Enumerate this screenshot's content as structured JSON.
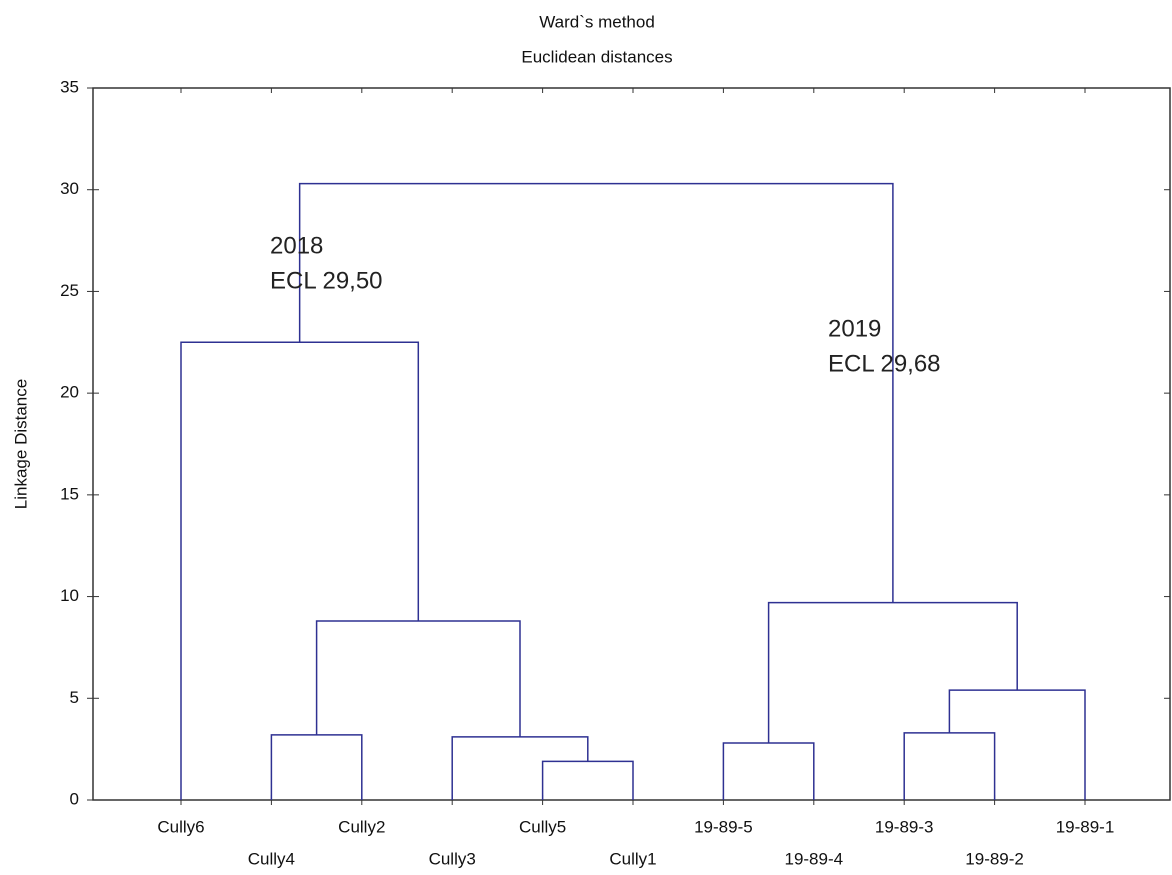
{
  "chart_data": {
    "type": "dendrogram",
    "title": "Ward`s method",
    "subtitle": "Euclidean distances",
    "y_label": "Linkage Distance",
    "ylim": [
      0,
      35
    ],
    "yticks": [
      0,
      5,
      10,
      15,
      20,
      25,
      30,
      35
    ],
    "color": "#2e3192",
    "leaves": [
      "Cully6",
      "Cully4",
      "Cully2",
      "Cully3",
      "Cully5",
      "Cully1",
      "19-89-5",
      "19-89-4",
      "19-89-3",
      "19-89-2",
      "19-89-1"
    ],
    "merges": [
      {
        "children": [
          4,
          5
        ],
        "height": 1.9
      },
      {
        "children": [
          6,
          7
        ],
        "height": 2.8
      },
      {
        "children": [
          3,
          11
        ],
        "height": 3.1
      },
      {
        "children": [
          1,
          2
        ],
        "height": 3.2
      },
      {
        "children": [
          8,
          9
        ],
        "height": 3.3
      },
      {
        "children": [
          15,
          10
        ],
        "height": 5.4
      },
      {
        "children": [
          14,
          13
        ],
        "height": 8.8
      },
      {
        "children": [
          12,
          16
        ],
        "height": 9.7
      },
      {
        "children": [
          0,
          17
        ],
        "height": 22.5
      },
      {
        "children": [
          19,
          18
        ],
        "height": 30.3
      }
    ],
    "annotations": [
      [
        "2018",
        "ECL 29,50"
      ],
      [
        "2019",
        "ECL 29,68"
      ]
    ]
  }
}
